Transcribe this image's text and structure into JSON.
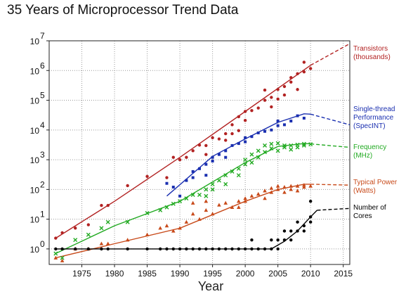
{
  "title": "35 Years of Microprocessor Trend Data",
  "chart_data": {
    "type": "scatter",
    "title": "35 Years of Microprocessor Trend Data",
    "xlabel": "Year",
    "ylabel": "",
    "xlim": [
      1970,
      2016
    ],
    "ylim": [
      0.3,
      10000000
    ],
    "y_scale": "log",
    "x_ticks": [
      "1975",
      "1980",
      "1985",
      "1990",
      "1995",
      "2000",
      "2005",
      "2010",
      "2015"
    ],
    "y_ticks": [
      {
        "base": "10",
        "exp": "7"
      },
      {
        "base": "10",
        "exp": "6"
      },
      {
        "base": "10",
        "exp": "5"
      },
      {
        "base": "10",
        "exp": "4"
      },
      {
        "base": "10",
        "exp": "3"
      },
      {
        "base": "10",
        "exp": "2"
      },
      {
        "base": "10",
        "exp": "1"
      },
      {
        "base": "10",
        "exp": "0"
      }
    ],
    "grid": true,
    "series": [
      {
        "name": "Transistors (thousands)",
        "label_lines": [
          "Transistors",
          "(thousands)"
        ],
        "color": "#b22222",
        "marker": "circle",
        "points": [
          [
            1971,
            2.3
          ],
          [
            1972,
            3.5
          ],
          [
            1974,
            5
          ],
          [
            1976,
            6.5
          ],
          [
            1978,
            29
          ],
          [
            1979,
            29
          ],
          [
            1982,
            134
          ],
          [
            1985,
            275
          ],
          [
            1988,
            250
          ],
          [
            1989,
            1200
          ],
          [
            1990,
            1000
          ],
          [
            1991,
            1200
          ],
          [
            1992,
            2000
          ],
          [
            1993,
            3100
          ],
          [
            1994,
            1500
          ],
          [
            1994,
            3000
          ],
          [
            1995,
            5500
          ],
          [
            1996,
            5000
          ],
          [
            1997,
            7500
          ],
          [
            1997,
            4500
          ],
          [
            1998,
            7500
          ],
          [
            1998,
            15000
          ],
          [
            1999,
            9500
          ],
          [
            1999,
            28000
          ],
          [
            2000,
            42000
          ],
          [
            2000,
            21000
          ],
          [
            2001,
            45000
          ],
          [
            2002,
            55000
          ],
          [
            2003,
            220000
          ],
          [
            2003,
            100000
          ],
          [
            2004,
            125000
          ],
          [
            2004,
            60000
          ],
          [
            2005,
            230000
          ],
          [
            2005,
            110000
          ],
          [
            2006,
            290000
          ],
          [
            2006,
            150000
          ],
          [
            2007,
            410000
          ],
          [
            2007,
            580000
          ],
          [
            2008,
            780000
          ],
          [
            2008,
            230000
          ],
          [
            2009,
            1900000
          ],
          [
            2009,
            900000
          ],
          [
            2010,
            1170000
          ]
        ],
        "trend": [
          [
            1971,
            2.3
          ],
          [
            1980,
            40
          ],
          [
            1990,
            1200
          ],
          [
            2000,
            42000
          ],
          [
            2010,
            1500000
          ]
        ],
        "projection": [
          [
            2010,
            1500000
          ],
          [
            2016,
            8000000
          ]
        ]
      },
      {
        "name": "Single-thread Performance (SpecINT)",
        "label_lines": [
          "Single-thread",
          "Performance",
          "(SpecINT)"
        ],
        "color": "#1a2fb0",
        "marker": "square",
        "points": [
          [
            1988,
            160
          ],
          [
            1989,
            120
          ],
          [
            1990,
            60
          ],
          [
            1991,
            200
          ],
          [
            1992,
            250
          ],
          [
            1992,
            400
          ],
          [
            1993,
            500
          ],
          [
            1994,
            700
          ],
          [
            1994,
            300
          ],
          [
            1995,
            1200
          ],
          [
            1995,
            900
          ],
          [
            1996,
            1500
          ],
          [
            1997,
            2000
          ],
          [
            1997,
            1200
          ],
          [
            1998,
            3000
          ],
          [
            1999,
            3500
          ],
          [
            2000,
            4000
          ],
          [
            2000,
            5500
          ],
          [
            2001,
            6000
          ],
          [
            2002,
            8000
          ],
          [
            2003,
            9000
          ],
          [
            2004,
            10000
          ],
          [
            2005,
            14000
          ],
          [
            2005,
            20000
          ],
          [
            2006,
            15000
          ],
          [
            2007,
            20000
          ],
          [
            2008,
            30000
          ],
          [
            2009,
            25000
          ]
        ],
        "trend": [
          [
            1988,
            60
          ],
          [
            1995,
            1300
          ],
          [
            2000,
            5000
          ],
          [
            2005,
            18000
          ],
          [
            2009,
            35000
          ],
          [
            2010,
            34000
          ]
        ],
        "projection": [
          [
            2010,
            34000
          ],
          [
            2016,
            15000
          ]
        ]
      },
      {
        "name": "Frequency (MHz)",
        "label_lines": [
          "Frequency",
          "(MHz)"
        ],
        "color": "#22aa22",
        "marker": "x",
        "points": [
          [
            1971,
            0.7
          ],
          [
            1972,
            0.5
          ],
          [
            1974,
            2
          ],
          [
            1976,
            3
          ],
          [
            1978,
            5
          ],
          [
            1979,
            8
          ],
          [
            1982,
            8
          ],
          [
            1985,
            16
          ],
          [
            1987,
            20
          ],
          [
            1988,
            25
          ],
          [
            1989,
            33
          ],
          [
            1990,
            40
          ],
          [
            1991,
            50
          ],
          [
            1992,
            66
          ],
          [
            1993,
            66
          ],
          [
            1994,
            100
          ],
          [
            1994,
            60
          ],
          [
            1995,
            150
          ],
          [
            1995,
            100
          ],
          [
            1996,
            200
          ],
          [
            1997,
            300
          ],
          [
            1997,
            150
          ],
          [
            1998,
            400
          ],
          [
            1999,
            500
          ],
          [
            1999,
            300
          ],
          [
            2000,
            1000
          ],
          [
            2000,
            700
          ],
          [
            2001,
            1500
          ],
          [
            2001,
            800
          ],
          [
            2002,
            2000
          ],
          [
            2002,
            1200
          ],
          [
            2003,
            3000
          ],
          [
            2003,
            1800
          ],
          [
            2004,
            3400
          ],
          [
            2004,
            2400
          ],
          [
            2005,
            3600
          ],
          [
            2005,
            2000
          ],
          [
            2006,
            3000
          ],
          [
            2006,
            2600
          ],
          [
            2007,
            3000
          ],
          [
            2007,
            2200
          ],
          [
            2008,
            3200
          ],
          [
            2008,
            2600
          ],
          [
            2009,
            3000
          ],
          [
            2009,
            3400
          ],
          [
            2010,
            3300
          ]
        ],
        "trend": [
          [
            1971,
            0.7
          ],
          [
            1980,
            6
          ],
          [
            1990,
            40
          ],
          [
            2000,
            800
          ],
          [
            2005,
            2800
          ],
          [
            2009,
            3500
          ],
          [
            2010,
            3400
          ]
        ],
        "projection": [
          [
            2010,
            3400
          ],
          [
            2016,
            2600
          ]
        ]
      },
      {
        "name": "Typical Power (Watts)",
        "label_lines": [
          "Typical Power",
          "(Watts)"
        ],
        "color": "#c84a1a",
        "marker": "triangle",
        "points": [
          [
            1971,
            0.5
          ],
          [
            1972,
            0.4
          ],
          [
            1974,
            1
          ],
          [
            1976,
            1
          ],
          [
            1978,
            1.5
          ],
          [
            1979,
            1.5
          ],
          [
            1982,
            2
          ],
          [
            1985,
            3
          ],
          [
            1987,
            5
          ],
          [
            1988,
            6
          ],
          [
            1989,
            4
          ],
          [
            1990,
            5
          ],
          [
            1991,
            8
          ],
          [
            1992,
            15
          ],
          [
            1992,
            35
          ],
          [
            1993,
            10
          ],
          [
            1994,
            20
          ],
          [
            1994,
            40
          ],
          [
            1995,
            15
          ],
          [
            1996,
            30
          ],
          [
            1997,
            35
          ],
          [
            1998,
            25
          ],
          [
            1999,
            40
          ],
          [
            1999,
            25
          ],
          [
            2000,
            50
          ],
          [
            2000,
            40
          ],
          [
            2001,
            60
          ],
          [
            2002,
            70
          ],
          [
            2003,
            90
          ],
          [
            2003,
            50
          ],
          [
            2004,
            110
          ],
          [
            2004,
            80
          ],
          [
            2005,
            130
          ],
          [
            2005,
            100
          ],
          [
            2006,
            120
          ],
          [
            2006,
            80
          ],
          [
            2007,
            130
          ],
          [
            2007,
            100
          ],
          [
            2008,
            130
          ],
          [
            2008,
            90
          ],
          [
            2009,
            120
          ],
          [
            2009,
            140
          ],
          [
            2010,
            130
          ]
        ],
        "trend": [
          [
            1971,
            0.5
          ],
          [
            1980,
            1.5
          ],
          [
            1990,
            5
          ],
          [
            2000,
            40
          ],
          [
            2005,
            100
          ],
          [
            2009,
            150
          ],
          [
            2010,
            150
          ]
        ],
        "projection": [
          [
            2010,
            150
          ],
          [
            2016,
            140
          ]
        ]
      },
      {
        "name": "Number of Cores",
        "label_lines": [
          "Number of",
          "Cores"
        ],
        "color": "#000000",
        "marker": "circle",
        "points": [
          [
            1971,
            1
          ],
          [
            1972,
            1
          ],
          [
            1974,
            1
          ],
          [
            1976,
            1
          ],
          [
            1978,
            1
          ],
          [
            1979,
            1
          ],
          [
            1982,
            1
          ],
          [
            1985,
            1
          ],
          [
            1987,
            1
          ],
          [
            1988,
            1
          ],
          [
            1989,
            1
          ],
          [
            1990,
            1
          ],
          [
            1991,
            1
          ],
          [
            1992,
            1
          ],
          [
            1993,
            1
          ],
          [
            1994,
            1
          ],
          [
            1995,
            1
          ],
          [
            1996,
            1
          ],
          [
            1997,
            1
          ],
          [
            1998,
            1
          ],
          [
            1999,
            1
          ],
          [
            2000,
            1
          ],
          [
            2001,
            1
          ],
          [
            2001,
            2
          ],
          [
            2002,
            1
          ],
          [
            2003,
            1
          ],
          [
            2004,
            1
          ],
          [
            2004,
            2
          ],
          [
            2005,
            2
          ],
          [
            2005,
            1
          ],
          [
            2006,
            2
          ],
          [
            2006,
            4
          ],
          [
            2007,
            2
          ],
          [
            2007,
            4
          ],
          [
            2008,
            4
          ],
          [
            2008,
            8
          ],
          [
            2009,
            6
          ],
          [
            2009,
            4
          ],
          [
            2010,
            8
          ],
          [
            2010,
            12
          ],
          [
            2010,
            40
          ]
        ],
        "trend": [
          [
            1971,
            1
          ],
          [
            2004,
            1
          ],
          [
            2006,
            1.8
          ],
          [
            2008,
            4
          ],
          [
            2010,
            12
          ],
          [
            2011,
            20
          ]
        ],
        "projection": [
          [
            2011,
            20
          ],
          [
            2016,
            23
          ]
        ]
      }
    ]
  }
}
